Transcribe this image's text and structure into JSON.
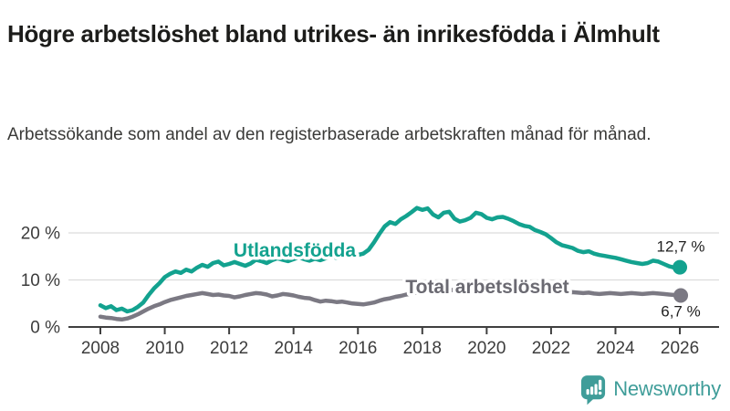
{
  "header": {
    "title": "Högre arbetslöshet bland utrikes- än inrikesfödda i Älmhult",
    "subtitle": "Arbetssökande som andel av den registerbaserade arbetskraften månad för månad."
  },
  "chart_data": {
    "type": "line",
    "title": "Högre arbetslöshet bland utrikes- än inrikesfödda i Älmhult",
    "grid": "horizontal-only",
    "legend": "inline-labels-on-lines",
    "x_axis": {
      "unit": "year (monthly data)",
      "range": [
        2007.0,
        2027.2
      ],
      "ticks": [
        {
          "value": 2008,
          "label": "2008"
        },
        {
          "value": 2010,
          "label": "2010"
        },
        {
          "value": 2012,
          "label": "2012"
        },
        {
          "value": 2014,
          "label": "2014"
        },
        {
          "value": 2016,
          "label": "2016"
        },
        {
          "value": 2018,
          "label": "2018"
        },
        {
          "value": 2020,
          "label": "2020"
        },
        {
          "value": 2022,
          "label": "2022"
        },
        {
          "value": 2024,
          "label": "2024"
        },
        {
          "value": 2026,
          "label": "2026"
        }
      ]
    },
    "y_axis": {
      "unit": "%",
      "range": [
        0,
        27
      ],
      "ticks": [
        {
          "value": 0,
          "label": "0 %"
        },
        {
          "value": 10,
          "label": "10 %"
        },
        {
          "value": 20,
          "label": "20 %"
        }
      ]
    },
    "x_start": 2008.0,
    "x_step": 0.166667,
    "series": [
      {
        "name": "Utlandsfödda",
        "color": "#13a28f",
        "end_label": "12,7 %",
        "end_value": 12.7,
        "values": [
          4.6,
          4.0,
          4.4,
          3.6,
          3.9,
          3.3,
          3.6,
          4.3,
          5.2,
          6.8,
          8.2,
          9.3,
          10.6,
          11.3,
          11.8,
          11.5,
          12.2,
          11.8,
          12.6,
          13.2,
          12.8,
          13.6,
          13.9,
          13.1,
          13.4,
          13.8,
          13.4,
          13.0,
          13.5,
          14.3,
          14.0,
          13.6,
          14.2,
          14.6,
          14.3,
          14.0,
          14.4,
          14.8,
          14.4,
          14.1,
          14.5,
          14.2,
          14.6,
          15.0,
          14.7,
          14.9,
          15.2,
          14.9,
          15.3,
          15.6,
          16.4,
          18.0,
          19.8,
          21.4,
          22.3,
          21.9,
          22.9,
          23.6,
          24.4,
          25.3,
          24.9,
          25.2,
          23.9,
          23.3,
          24.3,
          24.5,
          23.0,
          22.4,
          22.7,
          23.2,
          24.3,
          24.0,
          23.2,
          22.9,
          23.3,
          23.4,
          23.0,
          22.5,
          21.9,
          21.5,
          21.3,
          20.6,
          20.2,
          19.7,
          18.9,
          18.0,
          17.4,
          17.1,
          16.8,
          16.2,
          15.9,
          16.1,
          15.6,
          15.3,
          15.1,
          14.9,
          14.7,
          14.4,
          14.1,
          13.8,
          13.6,
          13.4,
          13.6,
          14.1,
          13.9,
          13.4,
          12.9,
          12.6,
          12.7
        ]
      },
      {
        "name": "Total arbetslöshet",
        "color": "#7b7983",
        "label_color": "#6b6a72",
        "end_label": "6,7 %",
        "end_value": 6.7,
        "values": [
          2.2,
          2.0,
          1.9,
          1.7,
          1.6,
          1.8,
          2.2,
          2.7,
          3.3,
          3.9,
          4.4,
          4.8,
          5.3,
          5.7,
          6.0,
          6.3,
          6.6,
          6.8,
          7.0,
          7.2,
          7.0,
          6.8,
          6.9,
          6.7,
          6.6,
          6.3,
          6.5,
          6.8,
          7.0,
          7.2,
          7.1,
          6.9,
          6.5,
          6.7,
          7.0,
          6.9,
          6.7,
          6.4,
          6.2,
          6.1,
          5.7,
          5.4,
          5.6,
          5.5,
          5.3,
          5.4,
          5.2,
          5.0,
          4.9,
          4.8,
          5.0,
          5.2,
          5.6,
          5.9,
          6.1,
          6.4,
          6.6,
          6.9,
          7.1,
          7.3,
          7.5,
          7.6,
          7.7,
          7.8,
          7.8,
          7.9,
          7.8,
          7.8,
          7.9,
          7.9,
          8.0,
          8.0,
          7.9,
          8.1,
          8.3,
          8.4,
          8.3,
          8.2,
          8.1,
          8.0,
          7.9,
          7.8,
          7.7,
          7.6,
          7.5,
          7.4,
          7.4,
          7.3,
          7.4,
          7.3,
          7.2,
          7.3,
          7.1,
          7.0,
          7.1,
          7.2,
          7.1,
          7.0,
          7.1,
          7.2,
          7.1,
          7.0,
          7.1,
          7.2,
          7.1,
          7.0,
          6.9,
          6.8,
          6.7
        ]
      }
    ],
    "colors": {
      "grid": "#dcdcdc",
      "axis": "#3f3f3f",
      "utlandsfodda": "#13a28f",
      "total": "#7b7983"
    }
  },
  "footer": {
    "brand": "Newsworthy",
    "brand_color": "#3f9d99",
    "logo_icon": "bar-chart-speech-bubble-icon"
  }
}
